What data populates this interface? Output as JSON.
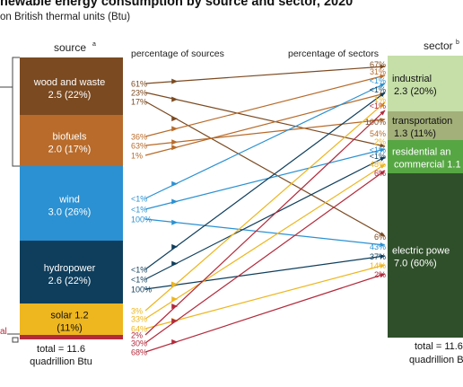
{
  "header": {
    "title": "newable energy consumption by source and sector, 2020",
    "subtitle": "on British thermal units (Btu)"
  },
  "labels": {
    "source_heading": "source",
    "source_sup": "a",
    "sector_heading": "sector",
    "sector_sup": "b",
    "pct_sources_heading": "percentage of sources",
    "pct_sectors_heading": "percentage of sectors",
    "source_total_line1": "total = 11.6",
    "source_total_line2": "quadrillion Btu",
    "sector_total_line1": "total = 11.6",
    "sector_total_line2": "quadrillion B",
    "left_edge_label": "al"
  },
  "colors": {
    "wood": "#7b4a21",
    "biofuels": "#b86b2a",
    "wind": "#2b91d2",
    "hydro": "#0e3e5c",
    "solar": "#eeb61f",
    "geothermal": "#b32a3b",
    "industrial": "#c6dfa9",
    "transportation": "#a3b07a",
    "residential": "#56a643",
    "electric": "#2f4f2a"
  },
  "sources": [
    {
      "key": "wood",
      "name": "wood and waste",
      "value": "2.5 (22%)",
      "text_color": "#ffffff",
      "out_pcts": [
        "61%",
        "23%",
        "17%"
      ]
    },
    {
      "key": "biofuels",
      "name": "biofuels",
      "value": "2.0 (17%)",
      "text_color": "#ffffff",
      "out_pcts": [
        "36%",
        "63%",
        "1%"
      ]
    },
    {
      "key": "wind",
      "name": "wind",
      "value": "3.0 (26%)",
      "text_color": "#ffffff",
      "out_pcts": [
        "<1%",
        "<1%",
        "100%"
      ]
    },
    {
      "key": "hydro",
      "name": "hydropower",
      "value": "2.6 (22%)",
      "text_color": "#ffffff",
      "out_pcts": [
        "<1%",
        "<1%",
        "100%"
      ]
    },
    {
      "key": "solar",
      "name": "solar 1.2",
      "value": "(11%)",
      "text_color": "#111111",
      "out_pcts": [
        "3%",
        "33%",
        "64%"
      ]
    },
    {
      "key": "geothermal",
      "name": "",
      "value": "",
      "text_color": "#ffffff",
      "out_pcts": [
        "2%",
        "30%",
        "68%"
      ]
    }
  ],
  "sectors": [
    {
      "key": "industrial",
      "name": "industrial",
      "value": "2.3 (20%)",
      "text_color": "#111111",
      "in_pcts": [
        "67%",
        "31%",
        "<1%",
        "<1%",
        "1%",
        "<1%"
      ]
    },
    {
      "key": "transportation",
      "name": "transportation",
      "value": "1.3 (11%)",
      "text_color": "#111111",
      "in_pcts": [
        "100%",
        "54%",
        "2%"
      ]
    },
    {
      "key": "residential",
      "name": "residential an",
      "value": "commercial 1.1",
      "text_color": "#ffffff",
      "in_pcts": [
        "<1%",
        "<1%",
        "48%",
        "6%"
      ]
    },
    {
      "key": "electric",
      "name": "electric powe",
      "value": "7.0 (60%)",
      "text_color": "#ffffff",
      "in_pcts": [
        "6%",
        "43%",
        "37%",
        "14%",
        "2%"
      ]
    }
  ]
}
